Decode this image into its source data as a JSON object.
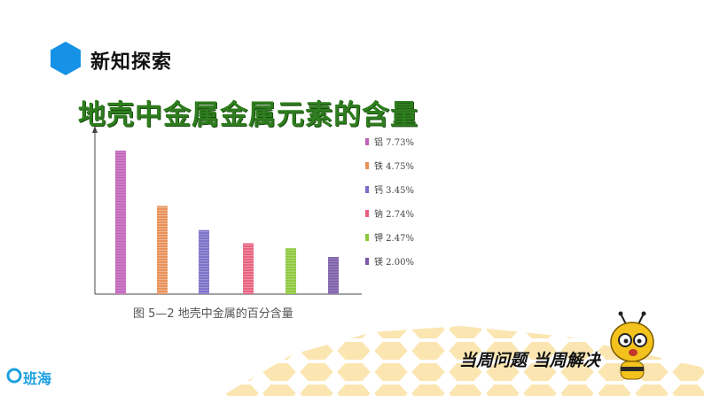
{
  "header": {
    "section_title": "新知探索",
    "icon": "hexagon-icon"
  },
  "main_title": "地壳中金属金属元素的含量",
  "chart_data": {
    "type": "bar",
    "title": "",
    "categories": [
      "铝",
      "铁",
      "钙",
      "钠",
      "钾",
      "镁"
    ],
    "values": [
      7.73,
      4.75,
      3.45,
      2.74,
      2.47,
      2.0
    ],
    "legend_labels": [
      "铝 7.73%",
      "铁 4.75%",
      "钙 3.45%",
      "钠 2.74%",
      "钾 2.47%",
      "镁 2.00%"
    ],
    "colors": [
      "#c060b8",
      "#e8925a",
      "#7a6ec8",
      "#e8607e",
      "#8cc83c",
      "#7a5aa8"
    ],
    "ylim": [
      0,
      8.4
    ],
    "legend_position": "right",
    "grid": false
  },
  "caption": "图 5—2   地壳中金属的百分含量",
  "footer": {
    "slogan": "当周问题 当周解决",
    "logo_text": "班海",
    "mascot": "bee-mascot-icon"
  }
}
